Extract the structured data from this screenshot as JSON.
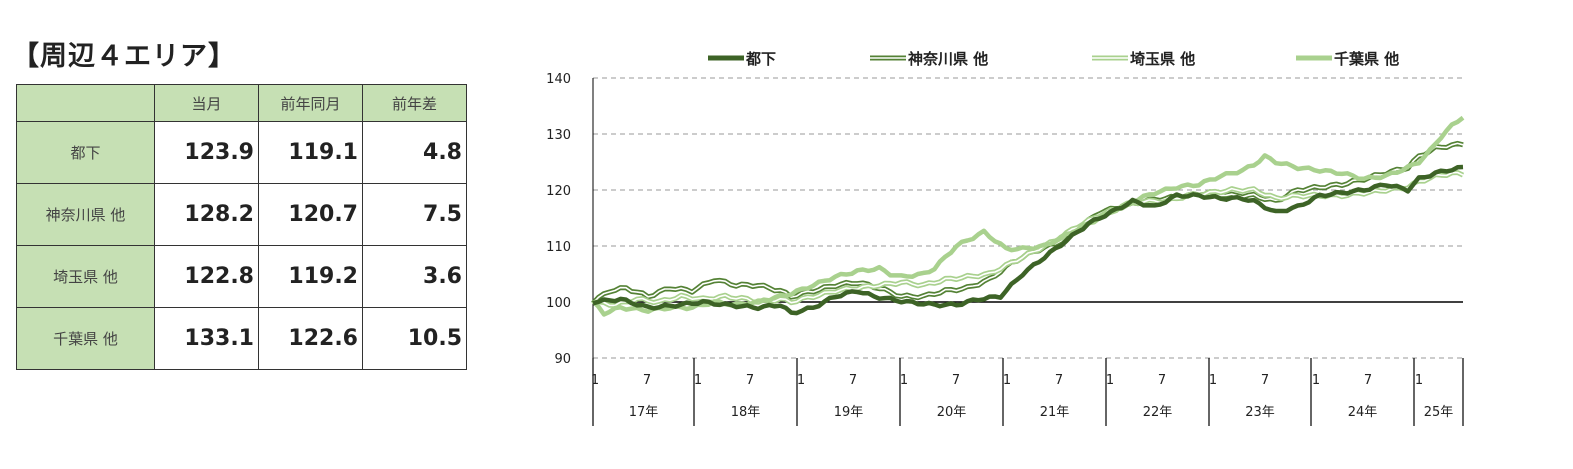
{
  "title": "【周辺４エリア】",
  "table": {
    "headers": [
      "",
      "当月",
      "前年同月",
      "前年差"
    ],
    "rows": [
      {
        "label": "都下",
        "current": "123.9",
        "prev": "119.1",
        "diff": "4.8"
      },
      {
        "label": "神奈川県 他",
        "current": "128.2",
        "prev": "120.7",
        "diff": "7.5"
      },
      {
        "label": "埼玉県 他",
        "current": "122.8",
        "prev": "119.2",
        "diff": "3.6"
      },
      {
        "label": "千葉県 他",
        "current": "133.1",
        "prev": "122.6",
        "diff": "10.5"
      }
    ]
  },
  "chart_data": {
    "type": "line",
    "ylim": [
      90,
      140
    ],
    "yticks": [
      90,
      100,
      110,
      120,
      130,
      140
    ],
    "grid": "dashed-horizontal",
    "baseline": 100,
    "legend_position": "top",
    "x_month_ticks": [
      "1",
      "7",
      "1",
      "7",
      "1",
      "7",
      "1",
      "7",
      "1",
      "7",
      "1",
      "7",
      "1",
      "7",
      "1",
      "7",
      "1"
    ],
    "year_labels": [
      "17年",
      "18年",
      "19年",
      "20年",
      "21年",
      "22年",
      "23年",
      "24年",
      "25年"
    ],
    "months_count": 100,
    "series": [
      {
        "name": "都下",
        "color": "#3d6326",
        "style": "solid-thick",
        "anchors": [
          [
            0,
            100
          ],
          [
            5,
            100.5
          ],
          [
            10,
            99
          ],
          [
            14,
            99.3
          ],
          [
            20,
            100
          ],
          [
            24,
            99.5
          ],
          [
            30,
            99
          ],
          [
            34,
            99.5
          ],
          [
            36,
            98
          ],
          [
            40,
            99
          ],
          [
            44,
            101
          ],
          [
            48,
            102
          ],
          [
            51,
            101
          ],
          [
            54,
            100.5
          ],
          [
            57,
            100
          ],
          [
            62,
            99.5
          ],
          [
            66,
            99.5
          ],
          [
            70,
            100.5
          ],
          [
            74,
            101
          ],
          [
            78,
            105
          ],
          [
            82,
            108
          ],
          [
            86,
            111
          ],
          [
            90,
            114
          ],
          [
            94,
            116
          ],
          [
            98,
            118
          ],
          [
            102,
            117
          ],
          [
            106,
            119
          ],
          [
            110,
            119
          ],
          [
            114,
            118.5
          ],
          [
            118,
            118.5
          ],
          [
            120,
            118
          ],
          [
            124,
            116
          ],
          [
            128,
            117
          ],
          [
            132,
            119
          ],
          [
            136,
            119.5
          ],
          [
            140,
            120
          ],
          [
            144,
            121
          ],
          [
            148,
            120
          ],
          [
            150,
            122
          ],
          [
            153,
            123
          ],
          [
            155,
            123.5
          ],
          [
            158,
            124
          ]
        ]
      },
      {
        "name": "神奈川県 他",
        "color": "#548235",
        "style": "double",
        "anchors": [
          [
            0,
            100
          ],
          [
            3,
            102
          ],
          [
            6,
            102.5
          ],
          [
            10,
            101
          ],
          [
            14,
            102.5
          ],
          [
            18,
            102
          ],
          [
            22,
            104
          ],
          [
            26,
            103
          ],
          [
            30,
            103
          ],
          [
            34,
            102
          ],
          [
            36,
            101
          ],
          [
            40,
            102
          ],
          [
            44,
            103
          ],
          [
            48,
            103.5
          ],
          [
            52,
            102.5
          ],
          [
            56,
            101
          ],
          [
            60,
            101
          ],
          [
            64,
            102
          ],
          [
            68,
            102.5
          ],
          [
            72,
            104
          ],
          [
            76,
            107
          ],
          [
            80,
            109
          ],
          [
            84,
            110.5
          ],
          [
            88,
            113
          ],
          [
            92,
            116
          ],
          [
            96,
            117
          ],
          [
            100,
            118
          ],
          [
            104,
            118.5
          ],
          [
            108,
            119
          ],
          [
            112,
            119.5
          ],
          [
            116,
            119
          ],
          [
            120,
            119
          ],
          [
            124,
            118
          ],
          [
            128,
            120
          ],
          [
            132,
            120.5
          ],
          [
            136,
            121
          ],
          [
            140,
            122
          ],
          [
            144,
            123
          ],
          [
            148,
            124
          ],
          [
            150,
            126
          ],
          [
            153,
            127.5
          ],
          [
            156,
            128
          ],
          [
            158,
            128.2
          ]
        ]
      },
      {
        "name": "埼玉県 他",
        "color": "#a9d18e",
        "style": "double",
        "anchors": [
          [
            0,
            100
          ],
          [
            4,
            99.5
          ],
          [
            8,
            100.5
          ],
          [
            12,
            100
          ],
          [
            16,
            101
          ],
          [
            20,
            100.5
          ],
          [
            24,
            101
          ],
          [
            28,
            100.5
          ],
          [
            30,
            100
          ],
          [
            34,
            100.5
          ],
          [
            36,
            100
          ],
          [
            40,
            101
          ],
          [
            44,
            102
          ],
          [
            48,
            102.5
          ],
          [
            52,
            103
          ],
          [
            56,
            103.5
          ],
          [
            60,
            103
          ],
          [
            64,
            104
          ],
          [
            68,
            104.5
          ],
          [
            72,
            105
          ],
          [
            76,
            107
          ],
          [
            80,
            109
          ],
          [
            84,
            111
          ],
          [
            88,
            113.5
          ],
          [
            92,
            115.5
          ],
          [
            96,
            117
          ],
          [
            100,
            118
          ],
          [
            104,
            118
          ],
          [
            108,
            119
          ],
          [
            112,
            119.5
          ],
          [
            116,
            120
          ],
          [
            120,
            120
          ],
          [
            124,
            118.5
          ],
          [
            128,
            119
          ],
          [
            132,
            119
          ],
          [
            136,
            119
          ],
          [
            140,
            119.5
          ],
          [
            144,
            120
          ],
          [
            148,
            120.5
          ],
          [
            150,
            121.5
          ],
          [
            153,
            122.5
          ],
          [
            156,
            123
          ],
          [
            158,
            122.8
          ]
        ]
      },
      {
        "name": "千葉県 他",
        "color": "#a9d18e",
        "style": "solid-thick",
        "anchors": [
          [
            0,
            100
          ],
          [
            2,
            98
          ],
          [
            5,
            99
          ],
          [
            10,
            98.5
          ],
          [
            14,
            99
          ],
          [
            18,
            99
          ],
          [
            22,
            100
          ],
          [
            26,
            99.5
          ],
          [
            30,
            100
          ],
          [
            34,
            101
          ],
          [
            36,
            101.5
          ],
          [
            40,
            103
          ],
          [
            44,
            104.5
          ],
          [
            48,
            105.5
          ],
          [
            52,
            106
          ],
          [
            54,
            105
          ],
          [
            56,
            104.5
          ],
          [
            60,
            105
          ],
          [
            62,
            106
          ],
          [
            64,
            108
          ],
          [
            66,
            110
          ],
          [
            68,
            111
          ],
          [
            70,
            112
          ],
          [
            71,
            112.5
          ],
          [
            73,
            111
          ],
          [
            75,
            109.5
          ],
          [
            78,
            109.5
          ],
          [
            82,
            110
          ],
          [
            86,
            112
          ],
          [
            90,
            114
          ],
          [
            94,
            116
          ],
          [
            98,
            118
          ],
          [
            102,
            119.5
          ],
          [
            106,
            120.5
          ],
          [
            110,
            121
          ],
          [
            114,
            122.5
          ],
          [
            118,
            123.5
          ],
          [
            120,
            124.5
          ],
          [
            122,
            126
          ],
          [
            124,
            125
          ],
          [
            128,
            124
          ],
          [
            132,
            123.5
          ],
          [
            136,
            123
          ],
          [
            140,
            122
          ],
          [
            144,
            122.5
          ],
          [
            148,
            124
          ],
          [
            150,
            125
          ],
          [
            152,
            127
          ],
          [
            154,
            129.5
          ],
          [
            156,
            131.5
          ],
          [
            158,
            133.1
          ]
        ]
      }
    ]
  }
}
